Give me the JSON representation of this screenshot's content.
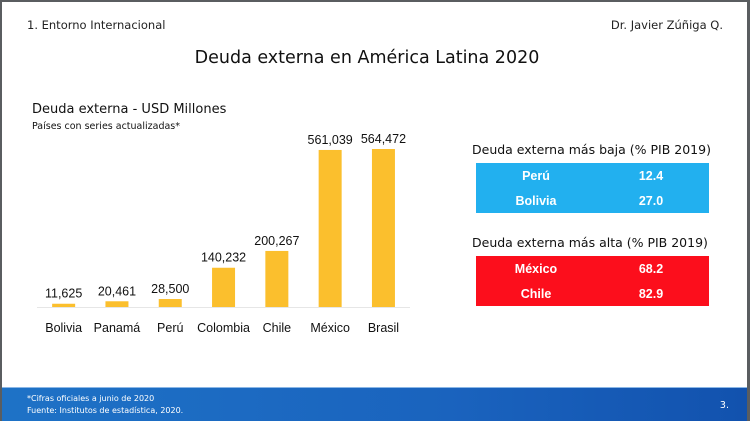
{
  "header": {
    "section": "1. Entorno Internacional",
    "author": "Dr. Javier Zúñiga Q.",
    "title": "Deuda externa en América Latina 2020"
  },
  "chart_data": {
    "type": "bar",
    "title": "Deuda externa - USD Millones",
    "subtitle": "Países con series actualizadas*",
    "categories": [
      "Bolivia",
      "Panamá",
      "Perú",
      "Colombia",
      "Chile",
      "México",
      "Brasil"
    ],
    "values": [
      11625,
      20461,
      28500,
      140232,
      200267,
      561039,
      564472
    ],
    "value_labels": [
      "11,625",
      "20,461",
      "28,500",
      "140,232",
      "200,267",
      "561,039",
      "564,472"
    ],
    "xlabel": "",
    "ylabel": "",
    "ylim": [
      0,
      564472
    ],
    "grid": false,
    "legend": "none",
    "bar_color": "#fbbf2d"
  },
  "tables": {
    "low": {
      "caption": "Deuda externa más baja  (% PIB 2019)",
      "color": "#22b0ef",
      "rows": [
        {
          "country": "Perú",
          "value": "12.4"
        },
        {
          "country": "Bolivia",
          "value": "27.0"
        }
      ]
    },
    "high": {
      "caption": "Deuda externa más alta  (% PIB 2019)",
      "color": "#fc0e1c",
      "rows": [
        {
          "country": "México",
          "value": "68.2"
        },
        {
          "country": "Chile",
          "value": "82.9"
        }
      ]
    }
  },
  "footer": {
    "note": "*Cifras oficiales a junio de 2020",
    "source": "Fuente: Institutos de estadística, 2020.",
    "page": "3."
  }
}
